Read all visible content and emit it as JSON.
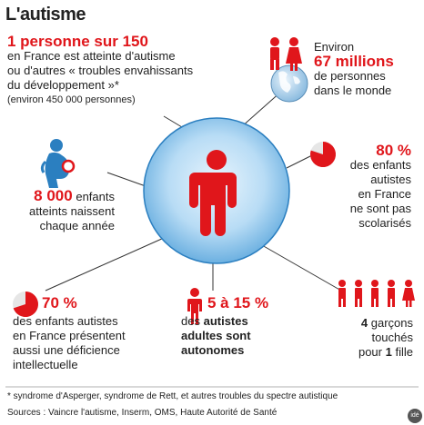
{
  "title": "L'autisme",
  "stat_main": {
    "headline": "1 personne sur 150",
    "line1": "en France est atteinte d'autisme",
    "line2": "ou d'autres « troubles envahissants",
    "line3": "du développement »*",
    "note": "(environ 450 000 personnes)"
  },
  "stat_world": {
    "pre": "Environ",
    "value": "67 millions",
    "line1": "de personnes",
    "line2": "dans le monde"
  },
  "stat_school": {
    "value": "80 %",
    "percent": 80,
    "lines": [
      "des enfants",
      "autistes",
      "en France",
      "ne sont pas",
      "scolarisés"
    ]
  },
  "stat_births": {
    "value": "8 000",
    "word": "enfants",
    "line2": "atteints naissent",
    "line3": "chaque année"
  },
  "stat_deficiency": {
    "value": "70 %",
    "percent": 70,
    "lines": [
      "des enfants autistes",
      "en France présentent",
      "aussi une déficience",
      "intellectuelle"
    ]
  },
  "stat_autonomy": {
    "value": "5 à 15 %",
    "line1_pre": "des",
    "line1_bold": "autistes",
    "line2": "adultes sont",
    "line3": "autonomes"
  },
  "stat_ratio": {
    "value": "4",
    "line1_rest": "garçons",
    "line2": "touchés",
    "line3_pre": "pour",
    "line3_val": "1",
    "line3_rest": "fille"
  },
  "footnote": "* syndrome d'Asperger, syndrome de Rett, et autres troubles du spectre autistique",
  "sources": "Sources : Vaincre l'autisme, Inserm, OMS, Haute Autorité de Santé",
  "logo": "idé",
  "colors": {
    "accent": "#e0161b",
    "blue": "#2b7fc0",
    "circle": "#8fc3ea"
  }
}
